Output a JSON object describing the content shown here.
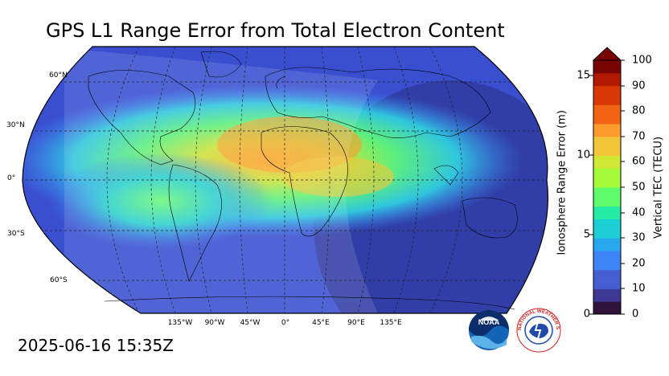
{
  "title": "GPS L1 Range Error from Total Electron Content",
  "timestamp": "2025-06-16 15:35Z",
  "map": {
    "projection": "Robinson",
    "lat_labels": [
      "60°N",
      "30°N",
      "0°",
      "30°S",
      "60°S"
    ],
    "lon_labels": [
      "135°W",
      "90°W",
      "45°W",
      "0°",
      "45°E",
      "90°E",
      "135°E"
    ],
    "ocean_color": "#3a4fd0",
    "peak_color": "#ff9a3c"
  },
  "colorbar": {
    "left_label": "Ionosphere Range Error (m)",
    "right_label": "Vertical TEC (TECU)",
    "left_ticks": [
      "0",
      "5",
      "10",
      "15"
    ],
    "right_ticks": [
      "0",
      "10",
      "20",
      "30",
      "40",
      "50",
      "60",
      "70",
      "80",
      "90",
      "100"
    ],
    "colormap": [
      "#30123b",
      "#3e3994",
      "#455fd2",
      "#3e84f9",
      "#28a8ef",
      "#1bcfd4",
      "#24eca6",
      "#61fc6c",
      "#a4fc3b",
      "#d1e834",
      "#f3c63a",
      "#fe9b2d",
      "#f36315",
      "#d93806",
      "#b11901",
      "#7a0403"
    ]
  },
  "logos": {
    "noaa": "NOAA",
    "nws": "NATIONAL WEATHER SERVICE"
  }
}
